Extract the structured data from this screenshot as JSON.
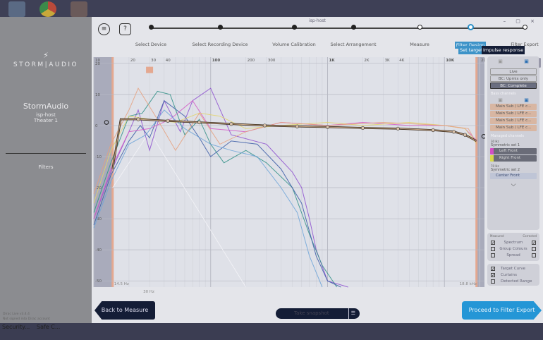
{
  "window": {
    "title": "isp-host",
    "controls": "– ▢ ×"
  },
  "sidebar": {
    "brand": "STORM|AUDIO",
    "device": "StormAudio",
    "host": "isp-host",
    "theater": "Theater 1",
    "nav_item": "Filters",
    "version": "Dirac Live v3.4.4",
    "account_status": "Not signed into Dirac account"
  },
  "taskbar": {
    "items": [
      "Security...",
      "Safe C..."
    ]
  },
  "header": {
    "menu_icon": "hamburger-icon",
    "help_label": "?",
    "steps": [
      {
        "label": "Select Device",
        "state": "done"
      },
      {
        "label": "Select Recording Device",
        "state": "done"
      },
      {
        "label": "Volume Calibration",
        "state": "done"
      },
      {
        "label": "Select Arrangement",
        "state": "done"
      },
      {
        "label": "Measure",
        "state": "open"
      },
      {
        "label": "Filter Design",
        "state": "current"
      },
      {
        "label": "Filter Export",
        "state": "open"
      }
    ],
    "sub_buttons": {
      "set_target": "Set target",
      "impulse_response": "Impulse response"
    }
  },
  "chart_data": {
    "type": "line",
    "x_scale": "log",
    "xlim": [
      10,
      22000
    ],
    "ylim": [
      -52,
      22
    ],
    "x_ticks": [
      "10",
      "20",
      "30",
      "40",
      "100",
      "200",
      "300",
      "1K",
      "2K",
      "3K",
      "4K",
      "10K",
      "20K"
    ],
    "x_tick_values": [
      10,
      20,
      30,
      40,
      100,
      200,
      300,
      1000,
      2000,
      3000,
      4000,
      10000,
      20000
    ],
    "y_ticks": [
      20,
      10,
      0,
      -10,
      -20,
      -30,
      -40,
      -50
    ],
    "low_limit_label": "14.5 Hz",
    "high_limit_label": "18.8 kHz",
    "marker_label": "30 Hz",
    "target_curve": {
      "x": [
        14.5,
        17,
        24,
        43,
        80,
        150,
        290,
        550,
        1000,
        2000,
        4000,
        8000,
        12000,
        15000,
        18800
      ],
      "y": [
        -14,
        2,
        2,
        1.5,
        1,
        0.5,
        0,
        -0.3,
        -0.5,
        -0.8,
        -1,
        -1.5,
        -2,
        -3,
        -5
      ]
    },
    "series": [
      {
        "color": "#8d4fcf",
        "x": [
          10,
          14,
          20,
          24,
          30,
          40,
          55,
          70,
          100,
          150,
          300,
          500,
          600,
          700,
          800,
          1000,
          1500
        ],
        "y": [
          -30,
          -15,
          -2,
          5,
          -8,
          8,
          -2,
          8,
          12,
          -3,
          -6,
          -15,
          -20,
          -30,
          -40,
          -50,
          -52
        ]
      },
      {
        "color": "#2f8f86",
        "x": [
          10,
          14,
          20,
          26,
          35,
          45,
          60,
          80,
          100,
          130,
          200,
          300,
          500,
          700,
          900,
          1200
        ],
        "y": [
          -28,
          -12,
          3,
          4,
          11,
          10,
          -3,
          2,
          -6,
          -12,
          -8,
          -12,
          -20,
          -35,
          -45,
          -52
        ]
      },
      {
        "color": "#3a5aa6",
        "x": [
          10,
          14,
          20,
          25,
          30,
          40,
          60,
          80,
          100,
          150,
          250,
          400,
          600,
          800,
          1000,
          1300
        ],
        "y": [
          -32,
          -16,
          -5,
          0,
          -4,
          8,
          3,
          -4,
          -10,
          -5,
          -6,
          -14,
          -25,
          -42,
          -50,
          -52
        ]
      },
      {
        "color": "#d35ac5",
        "x": [
          10,
          14,
          20,
          30,
          45,
          70,
          100,
          200,
          400,
          1000,
          2000,
          5000,
          10000,
          15000,
          19000
        ],
        "y": [
          -30,
          -14,
          -2,
          -1,
          2,
          8,
          -1,
          -2,
          1,
          0,
          1,
          0,
          0,
          -1,
          -5
        ]
      },
      {
        "color": "#e3d36a",
        "x": [
          10,
          14,
          20,
          30,
          50,
          80,
          120,
          200,
          400,
          1000,
          2000,
          5000,
          10000,
          15000,
          19000
        ],
        "y": [
          -25,
          -8,
          3,
          2,
          1,
          4,
          3,
          -1,
          0,
          1,
          0,
          1,
          0,
          -1,
          -6
        ]
      },
      {
        "color": "#e6a07c",
        "x": [
          10,
          14,
          20,
          24,
          35,
          50,
          80,
          120,
          200,
          400,
          1000,
          3000,
          10000,
          16000,
          19000
        ],
        "y": [
          -22,
          -6,
          5,
          12,
          2,
          -8,
          4,
          -6,
          -2,
          1,
          0,
          1,
          0,
          -1,
          -6
        ]
      },
      {
        "color": "#6ea4d8",
        "x": [
          10,
          14,
          20,
          28,
          40,
          60,
          100,
          150,
          250,
          400,
          550,
          700,
          900
        ],
        "y": [
          -33,
          -18,
          -6,
          -3,
          5,
          -1,
          -6,
          -8,
          -10,
          -20,
          -28,
          -42,
          -52
        ]
      }
    ]
  },
  "right_panel": {
    "modes": [
      "Live",
      "BC: Upmix only",
      "BC: Complete"
    ],
    "bass_label": "Bass channels",
    "bass_items": [
      "Main Sub / LFE c...",
      "Main Sub / LFE c...",
      "Main Sub / LFE c...",
      "Main Sub / LFE c..."
    ],
    "managed_label": "Managed channels",
    "set1_freq": "30 Hz",
    "set1": "Symmetric set 1",
    "set1_items": [
      "Left Front",
      "Right Front"
    ],
    "set2_freq": "70 Hz",
    "set2": "Symmetric set 2",
    "set2_items": [
      "Center Front"
    ],
    "measured": "Measured",
    "corrected": "Corrected",
    "options": [
      "Spectrum",
      "Group Colours",
      "Spread"
    ],
    "options_measured": [
      true,
      false,
      false
    ],
    "options_corrected": [
      true,
      false,
      false
    ],
    "overlays": [
      "Target Curve",
      "Curtains",
      "Detected Range"
    ],
    "overlays_checked": [
      true,
      true,
      false
    ]
  },
  "footer": {
    "back": "Back to Measure",
    "snapshot": "Take snapshot",
    "next": "Proceed to Filter Export"
  }
}
